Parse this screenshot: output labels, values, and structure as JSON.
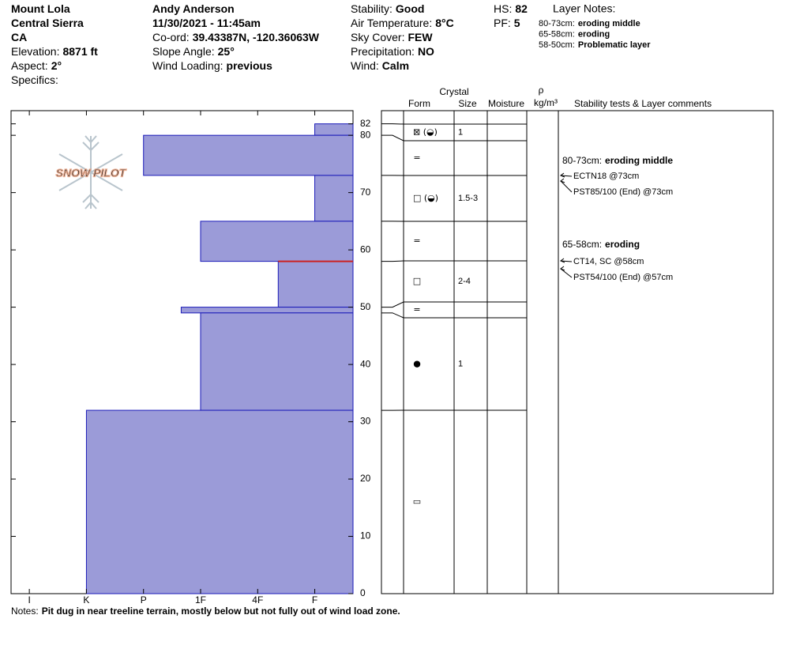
{
  "header": {
    "site": [
      {
        "value": "Mount Lola"
      },
      {
        "value": "Central Sierra"
      },
      {
        "value": "CA"
      },
      {
        "label": "Elevation:",
        "value": "8871 ft"
      },
      {
        "label": "Aspect:",
        "value": "2°"
      },
      {
        "label": "Specifics:"
      }
    ],
    "observer": [
      {
        "value": "Andy Anderson"
      },
      {
        "value": "11/30/2021 - 11:45am"
      },
      {
        "label": "Co-ord:",
        "value": "39.43387N, -120.36063W"
      },
      {
        "label": "Slope Angle:",
        "value": "25°"
      },
      {
        "label": "Wind Loading:",
        "value": "previous"
      }
    ],
    "conditions": [
      {
        "label": "Stability:",
        "value": "Good"
      },
      {
        "label": "Air Temperature:",
        "value": "8°C"
      },
      {
        "label": "Sky Cover:",
        "value": "FEW"
      },
      {
        "label": "Precipitation:",
        "value": "NO"
      },
      {
        "label": "Wind:",
        "value": "Calm"
      }
    ],
    "depth": [
      {
        "label": "HS:",
        "value": "82"
      },
      {
        "label": "PF:",
        "value": "5"
      }
    ],
    "layer_notes": {
      "title": "Layer Notes:",
      "items": [
        {
          "label": "80-73cm:",
          "value": "eroding middle"
        },
        {
          "label": "65-58cm:",
          "value": "eroding"
        },
        {
          "label": "58-50cm:",
          "value": "Problematic layer"
        }
      ]
    }
  },
  "chart_data": {
    "type": "snow-profile",
    "logo": "SNOW PILOT",
    "color": "#9b9bd8",
    "edge_color": "#1a1ab8",
    "critical_color": "#cc2222",
    "critical_layer": 58,
    "ylim": [
      0,
      84.3
    ],
    "yticks": [
      0,
      10,
      20,
      30,
      40,
      50,
      60,
      70,
      80,
      82
    ],
    "xlim": [
      6.32,
      0.33
    ],
    "xticks": [
      {
        "value": 6,
        "label": "I"
      },
      {
        "value": 5,
        "label": "K"
      },
      {
        "value": 4,
        "label": "P"
      },
      {
        "value": 3,
        "label": "1F"
      },
      {
        "value": 2,
        "label": "4F"
      },
      {
        "value": 1,
        "label": "F"
      }
    ],
    "layers": [
      {
        "top": 82,
        "bottom": 80,
        "hardness": 1,
        "form": "⊠ (◒)",
        "size": "1"
      },
      {
        "top": 80,
        "bottom": 73,
        "hardness": 4,
        "form": "=",
        "size": null
      },
      {
        "top": 73,
        "bottom": 65,
        "hardness": 1,
        "form": "□ (◒)",
        "size": "1.5-3"
      },
      {
        "top": 65,
        "bottom": 58,
        "hardness": 3,
        "form": "=",
        "size": null
      },
      {
        "top": 58,
        "bottom": 50,
        "hardness": 1.64,
        "form": "□",
        "size": "2-4"
      },
      {
        "top": 50,
        "bottom": 49,
        "hardness": 3.34,
        "form": "=",
        "size": null
      },
      {
        "top": 49,
        "bottom": 32,
        "hardness": 3,
        "form": "●",
        "size": "1"
      },
      {
        "top": 32,
        "bottom": 0,
        "hardness": 5,
        "form": "▭",
        "size": null
      }
    ],
    "columns": {
      "crystal": "Crystal",
      "form": "Form",
      "size": "Size",
      "moisture": "Moisture",
      "rho": "ρ",
      "density_unit": "kg/m³",
      "comments": "Stability tests & Layer comments"
    },
    "comments": [
      {
        "label": "80-73cm:",
        "value": "eroding middle",
        "tests": [
          "ECTN18 @73cm",
          "PST85/100 (End) @73cm"
        ]
      },
      {
        "label": "65-58cm:",
        "value": "eroding",
        "tests": [
          "CT14, SC @58cm",
          "PST54/100 (End) @57cm"
        ]
      }
    ]
  },
  "notes": {
    "label": "Notes:",
    "value": "Pit dug in near treeline terrain, mostly below but not fully out of wind load zone."
  }
}
